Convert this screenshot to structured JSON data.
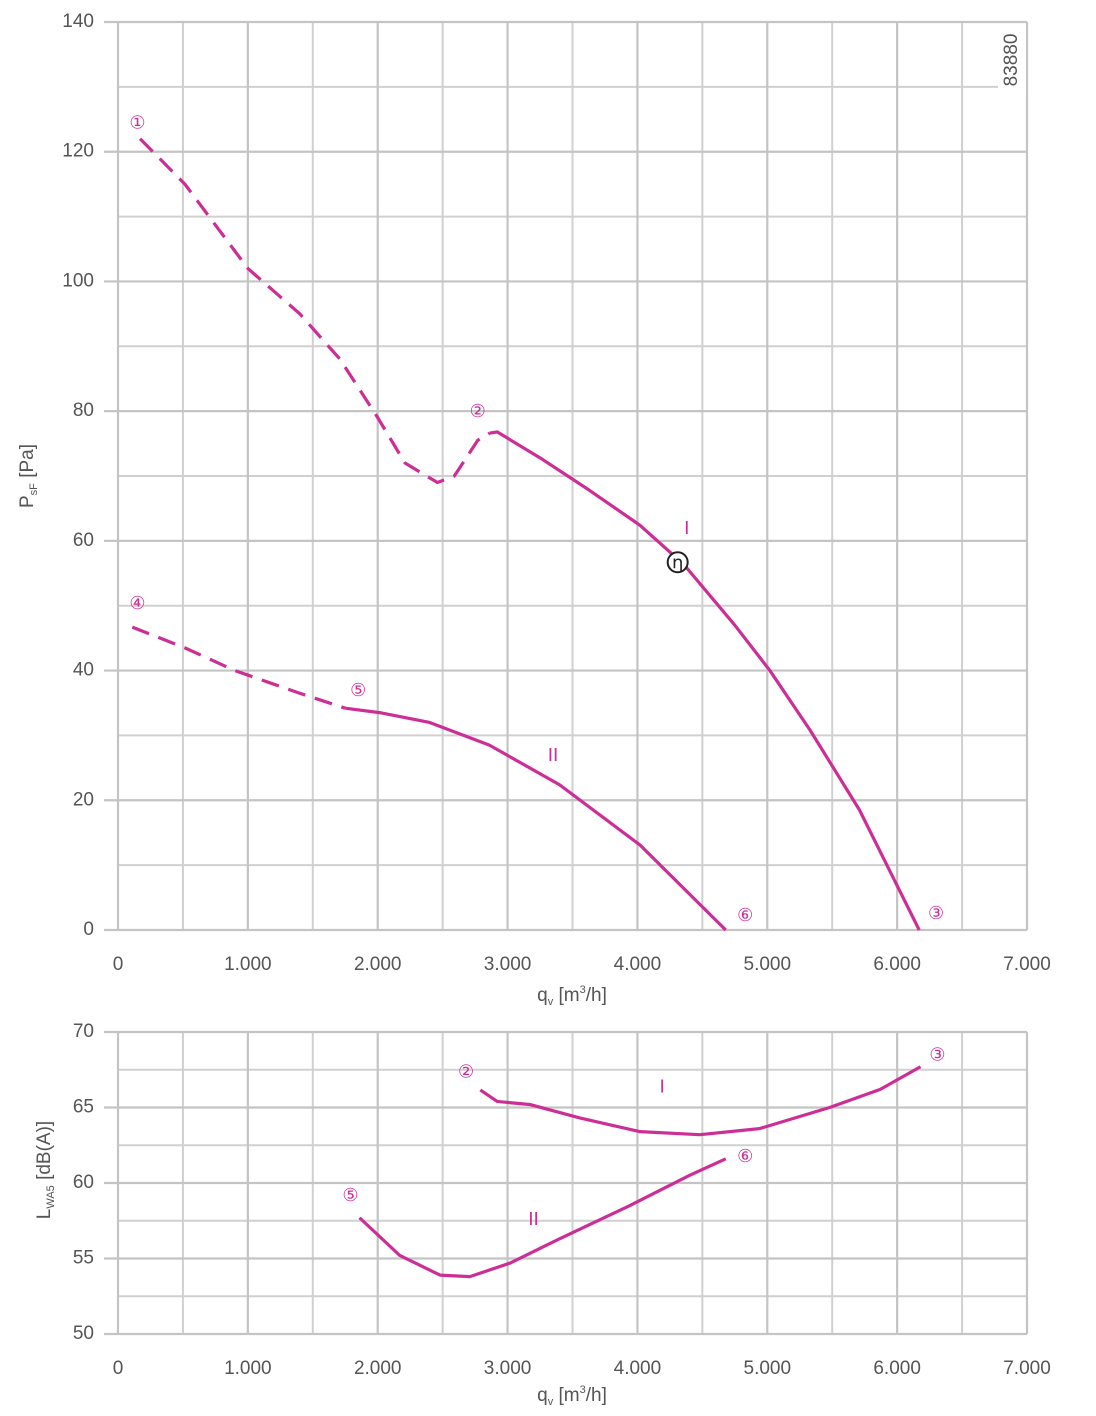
{
  "chart_data": [
    {
      "type": "line",
      "code": "83880",
      "y_label": [
        {
          "text": "P"
        },
        {
          "text": "sF",
          "script": "sub"
        },
        {
          "text": " [Pa]"
        }
      ],
      "x_label": [
        {
          "text": "q"
        },
        {
          "text": "v",
          "script": "sub"
        },
        {
          "text": " [m"
        },
        {
          "text": "3",
          "script": "sup"
        },
        {
          "text": "/h]"
        }
      ],
      "xlim": [
        0,
        7000
      ],
      "ylim": [
        0,
        140
      ],
      "xticks": [
        0,
        {
          "value": 1000,
          "label": "1.000"
        },
        {
          "value": 2000,
          "label": "2.000"
        },
        {
          "value": 3000,
          "label": "3.000"
        },
        {
          "value": 4000,
          "label": "4.000"
        },
        {
          "value": 5000,
          "label": "5.000"
        },
        {
          "value": 6000,
          "label": "6.000"
        },
        {
          "value": 7000,
          "label": "7.000"
        }
      ],
      "yticks": [
        0,
        20,
        40,
        60,
        80,
        100,
        120,
        140
      ],
      "minor_xticks": [
        500,
        1500,
        2500,
        3500,
        4500,
        5500,
        6500
      ],
      "minor_yticks": [
        10,
        30,
        50,
        70,
        90,
        110,
        130
      ],
      "grid": true,
      "color": "#cc2e96",
      "series": [
        {
          "dashed": true,
          "x": [
            170,
            515,
            1000,
            1400,
            1710,
            2000,
            2210,
            2460,
            2590,
            2770,
            2860
          ],
          "values": [
            122,
            115,
            102,
            95,
            88,
            79,
            72,
            69,
            70,
            75.5,
            76.6
          ]
        },
        {
          "dashed": false,
          "x": [
            2860,
            2920,
            3250,
            3630,
            4020,
            4360,
            4750,
            5020,
            5330,
            5710,
            6170
          ],
          "values": [
            76.6,
            76.8,
            72.8,
            67.8,
            62.4,
            56.3,
            47,
            40,
            30.8,
            18.5,
            0
          ]
        },
        {
          "dashed": true,
          "x": [
            110,
            515,
            900,
            1400,
            1750
          ],
          "values": [
            46.7,
            43.5,
            40,
            36.5,
            34.2
          ]
        },
        {
          "dashed": false,
          "x": [
            1750,
            2020,
            2400,
            2860,
            3400,
            4020,
            4680
          ],
          "values": [
            34.2,
            33.5,
            32,
            28.5,
            22.4,
            13.1,
            0
          ]
        }
      ],
      "annotations": [
        {
          "text": "①",
          "x": 150,
          "y": 124.5
        },
        {
          "text": "②",
          "x": 2770,
          "y": 80
        },
        {
          "text": "③",
          "x": 6300,
          "y": 2.6
        },
        {
          "text": "④",
          "x": 150,
          "y": 50.4
        },
        {
          "text": "⑤",
          "x": 1850,
          "y": 37
        },
        {
          "text": "⑥",
          "x": 4830,
          "y": 2.3
        },
        {
          "text": "I",
          "x": 4380,
          "y": 62
        },
        {
          "text": "II",
          "x": 3350,
          "y": 27
        },
        {
          "text": "η",
          "x": 4310,
          "y": 56.7,
          "circled": true
        }
      ]
    },
    {
      "type": "line",
      "y_label": [
        {
          "text": "L"
        },
        {
          "text": "WA5",
          "script": "sub"
        },
        {
          "text": " [dB(A)]"
        }
      ],
      "x_label": [
        {
          "text": "q"
        },
        {
          "text": "v",
          "script": "sub"
        },
        {
          "text": " [m"
        },
        {
          "text": "3",
          "script": "sup"
        },
        {
          "text": "/h]"
        }
      ],
      "xlim": [
        0,
        7000
      ],
      "ylim": [
        50,
        70
      ],
      "xticks": [
        0,
        {
          "value": 1000,
          "label": "1.000"
        },
        {
          "value": 2000,
          "label": "2.000"
        },
        {
          "value": 3000,
          "label": "3.000"
        },
        {
          "value": 4000,
          "label": "4.000"
        },
        {
          "value": 5000,
          "label": "5.000"
        },
        {
          "value": 6000,
          "label": "6.000"
        },
        {
          "value": 7000,
          "label": "7.000"
        }
      ],
      "yticks": [
        50,
        55,
        60,
        65,
        70
      ],
      "minor_xticks": [
        500,
        1500,
        2500,
        3500,
        4500,
        5500,
        6500
      ],
      "minor_yticks": [
        52.5,
        57.5,
        62.5,
        67.5
      ],
      "grid": true,
      "color": "#cc2e96",
      "series": [
        {
          "dashed": false,
          "x": [
            2790,
            2920,
            3170,
            3560,
            4020,
            4480,
            4940,
            5480,
            5870,
            6180
          ],
          "values": [
            66.16,
            65.4,
            65.2,
            64.3,
            63.4,
            63.2,
            63.6,
            65,
            66.2,
            67.7
          ]
        },
        {
          "dashed": false,
          "x": [
            1860,
            2170,
            2480,
            2710,
            3020,
            3400,
            3940,
            4400,
            4680
          ],
          "values": [
            57.7,
            55.2,
            53.9,
            53.8,
            54.7,
            56.3,
            58.5,
            60.5,
            61.6
          ]
        }
      ],
      "annotations": [
        {
          "text": "②",
          "x": 2680,
          "y": 67.4
        },
        {
          "text": "③",
          "x": 6310,
          "y": 68.5
        },
        {
          "text": "⑤",
          "x": 1790,
          "y": 59.2
        },
        {
          "text": "⑥",
          "x": 4830,
          "y": 61.8
        },
        {
          "text": "I",
          "x": 4190,
          "y": 66.4
        },
        {
          "text": "II",
          "x": 3200,
          "y": 57.6
        }
      ]
    }
  ]
}
